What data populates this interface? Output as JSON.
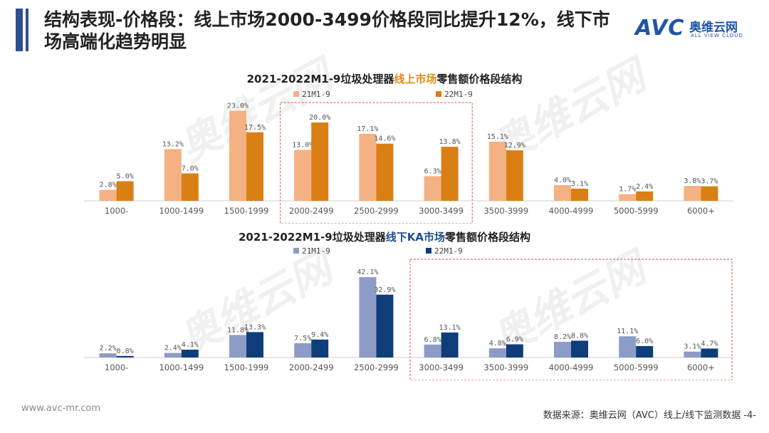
{
  "header": {
    "title": "结构表现-价格段：线上市场2000-3499价格段同比提升12%，线下市场高端化趋势明显",
    "logo_avc": "AVC",
    "logo_cn": "奥维云网",
    "logo_en": "ALL VIEW CLOUD"
  },
  "watermark": {
    "cn": "奥维云网",
    "en": "ALL VIEW CLOUD",
    "avc": "AVC"
  },
  "footer": {
    "url": "www.avc-mr.com",
    "source": "数据来源：奥维云网（AVC）线上/线下监测数据 -4-"
  },
  "colors": {
    "online_21": "#f4b183",
    "online_22": "#d97f14",
    "offline_21": "#8d9cc6",
    "offline_22": "#0f3d7a",
    "highlight_box": "#d9534f"
  },
  "chart_data": [
    {
      "type": "bar",
      "title_prefix": "2021-2022M1-9垃圾处理器",
      "title_highlight": "线上市场",
      "title_suffix": "零售额价格段结构",
      "categories": [
        "1000-",
        "1000-1499",
        "1500-1999",
        "2000-2499",
        "2500-2999",
        "3000-3499",
        "3500-3999",
        "4000-4999",
        "5000-5999",
        "6000+"
      ],
      "series": [
        {
          "name": "21M1-9",
          "values": [
            2.8,
            13.2,
            23.0,
            13.0,
            17.1,
            6.3,
            15.1,
            4.0,
            1.7,
            3.8
          ],
          "labels": [
            "2.8%",
            "13.2%",
            "23.0%",
            "13.0%",
            "17.1%",
            "6.3%",
            "15.1%",
            "4.0%",
            "1.7%",
            "3.8%"
          ]
        },
        {
          "name": "22M1-9",
          "values": [
            5.0,
            7.0,
            17.5,
            20.0,
            14.6,
            13.8,
            12.9,
            3.1,
            2.4,
            3.7
          ],
          "labels": [
            "5.0%",
            "7.0%",
            "17.5%",
            "20.0%",
            "14.6%",
            "13.8%",
            "12.9%",
            "3.1%",
            "2.4%",
            "3.7%"
          ]
        }
      ],
      "ylim": [
        0,
        24
      ],
      "legend_position": "top",
      "highlight_categories": [
        "2000-2499",
        "2500-2999",
        "3000-3499"
      ]
    },
    {
      "type": "bar",
      "title_prefix": "2021-2022M1-9垃圾处理器",
      "title_highlight": "线下KA市场",
      "title_suffix": "零售额价格段结构",
      "categories": [
        "1000-",
        "1000-1499",
        "1500-1999",
        "2000-2499",
        "2500-2999",
        "3000-3499",
        "3500-3999",
        "4000-4999",
        "5000-5999",
        "6000+"
      ],
      "series": [
        {
          "name": "21M1-9",
          "values": [
            2.2,
            2.4,
            11.8,
            7.5,
            42.1,
            6.8,
            4.8,
            8.2,
            11.1,
            3.1
          ],
          "labels": [
            "2.2%",
            "2.4%",
            "11.8%",
            "7.5%",
            "42.1%",
            "6.8%",
            "4.8%",
            "8.2%",
            "11.1%",
            "3.1%"
          ]
        },
        {
          "name": "22M1-9",
          "values": [
            0.8,
            4.1,
            13.3,
            9.4,
            32.9,
            13.1,
            6.9,
            8.8,
            6.0,
            4.7
          ],
          "labels": [
            "0.8%",
            "4.1%",
            "13.3%",
            "9.4%",
            "32.9%",
            "13.1%",
            "6.9%",
            "8.8%",
            "6.0%",
            "4.7%"
          ]
        }
      ],
      "ylim": [
        0,
        44
      ],
      "legend_position": "top",
      "highlight_categories": [
        "3000-3499",
        "3500-3999",
        "4000-4999",
        "5000-5999",
        "6000+"
      ]
    }
  ]
}
